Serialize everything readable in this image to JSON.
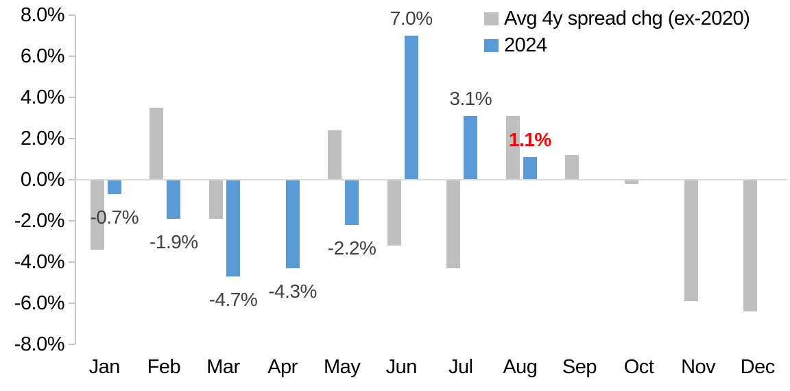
{
  "chart_data": {
    "type": "bar",
    "title": "",
    "xlabel": "",
    "ylabel": "",
    "categories": [
      "Jan",
      "Feb",
      "Mar",
      "Apr",
      "May",
      "Jun",
      "Jul",
      "Aug",
      "Sep",
      "Oct",
      "Nov",
      "Dec"
    ],
    "series": [
      {
        "name": "Avg 4y spread chg (ex-2020)",
        "color": "#bfbfbf",
        "values": [
          -3.4,
          3.5,
          -1.9,
          0.0,
          2.4,
          -3.2,
          -4.3,
          3.1,
          1.2,
          -0.2,
          -5.9,
          -6.4
        ]
      },
      {
        "name": "2024",
        "color": "#5b9bd5",
        "values": [
          -0.7,
          -1.9,
          -4.7,
          -4.3,
          -2.2,
          7.0,
          3.1,
          1.1,
          null,
          null,
          null,
          null
        ],
        "data_labels": [
          {
            "text": "-0.7%",
            "color": "#404040",
            "bold": false
          },
          {
            "text": "-1.9%",
            "color": "#404040",
            "bold": false
          },
          {
            "text": "-4.7%",
            "color": "#404040",
            "bold": false
          },
          {
            "text": "-4.3%",
            "color": "#404040",
            "bold": false
          },
          {
            "text": "-2.2%",
            "color": "#404040",
            "bold": false
          },
          {
            "text": "7.0%",
            "color": "#404040",
            "bold": false
          },
          {
            "text": "3.1%",
            "color": "#404040",
            "bold": false
          },
          {
            "text": "1.1%",
            "color": "#ff0000",
            "bold": true
          },
          null,
          null,
          null,
          null
        ]
      }
    ],
    "ylim": [
      -8,
      8
    ],
    "ytick_step": 2,
    "ytick_labels": [
      "8.0%",
      "6.0%",
      "4.0%",
      "2.0%",
      "0.0%",
      "-2.0%",
      "-4.0%",
      "-6.0%",
      "-8.0%"
    ],
    "grid": false,
    "legend_position": "top-right",
    "axis_color": "#c6c6c6",
    "zero_line_color": "#d9d9d9"
  }
}
